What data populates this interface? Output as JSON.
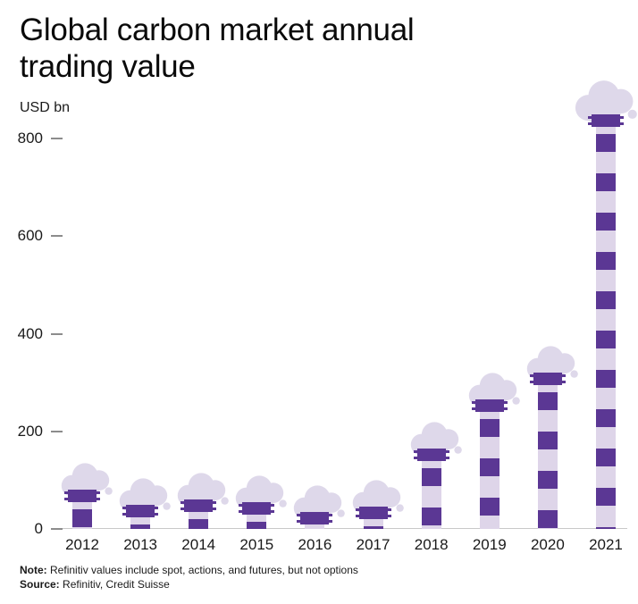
{
  "title": {
    "line1": "Global carbon market annual",
    "line2": "trading value"
  },
  "unit_label": "USD bn",
  "chart_data": {
    "type": "bar",
    "title": "Global carbon market annual trading value",
    "xlabel": "",
    "ylabel": "USD bn",
    "categories": [
      "2012",
      "2013",
      "2014",
      "2015",
      "2016",
      "2017",
      "2018",
      "2019",
      "2020",
      "2021"
    ],
    "values": [
      80,
      50,
      60,
      55,
      35,
      45,
      165,
      265,
      320,
      850
    ],
    "ylim": [
      0,
      880
    ],
    "yticks": [
      0,
      200,
      400,
      600,
      800
    ],
    "grid": false,
    "legend": "none",
    "bar_style": "smokestack-with-smoke-cloud",
    "colors": {
      "dark_purple": "#5b3794",
      "light_lavender": "#ded5e9",
      "smoke": "#ded8ea",
      "axis": "#c8c8c8",
      "text": "#1a1a1a"
    }
  },
  "footnote": {
    "note_label": "Note:",
    "note_text": "Refinitiv values include spot, actions, and futures, but not options",
    "source_label": "Source:",
    "source_text": "Refinitiv, Credit Suisse"
  }
}
